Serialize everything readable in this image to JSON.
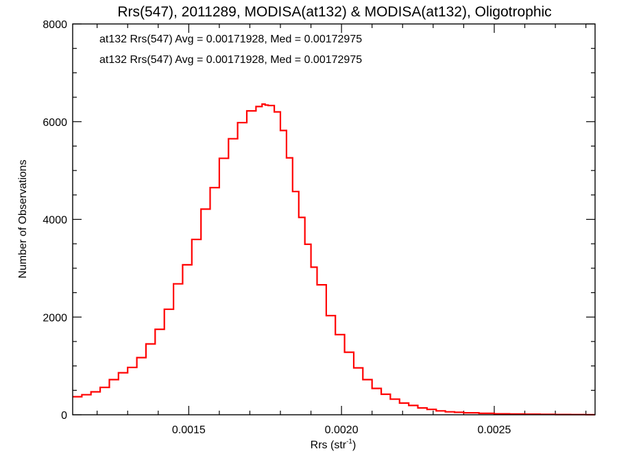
{
  "chart_data": {
    "type": "step",
    "title": "Rrs(547), 2011289, MODISA(at132) & MODISA(at132), Oligotrophic",
    "xlabel": "Rrs (str",
    "xlabel_sup": "-1",
    "xlabel_close": ")",
    "ylabel": "Number of Observations",
    "xlim": [
      0.00112,
      0.00283
    ],
    "ylim": [
      0,
      8000
    ],
    "xticks": [
      0.0015,
      0.002,
      0.0025
    ],
    "xtick_labels": [
      "0.0015",
      "0.0020",
      "0.0025"
    ],
    "yticks": [
      0,
      2000,
      4000,
      6000,
      8000
    ],
    "ytick_labels": [
      "0",
      "2000",
      "4000",
      "6000",
      "8000"
    ],
    "grid": false,
    "annotations": [
      {
        "text": "at132 Rrs(547) Avg = 0.00171928, Med = 0.00172975",
        "color": "#000000"
      },
      {
        "text": "at132 Rrs(547) Avg = 0.00171928, Med = 0.00172975",
        "color": "#ff0000"
      }
    ],
    "series": [
      {
        "color": "#ff0000",
        "x": [
          0.00112,
          0.00115,
          0.00118,
          0.00121,
          0.00124,
          0.00127,
          0.0013,
          0.00133,
          0.00136,
          0.00139,
          0.00142,
          0.00145,
          0.00148,
          0.00151,
          0.00154,
          0.00157,
          0.0016,
          0.00163,
          0.00166,
          0.00169,
          0.00172,
          0.00174,
          0.00175,
          0.00176,
          0.00178,
          0.0018,
          0.00182,
          0.00184,
          0.00186,
          0.00188,
          0.0019,
          0.00192,
          0.00195,
          0.00198,
          0.00201,
          0.00204,
          0.00207,
          0.0021,
          0.00213,
          0.00216,
          0.00219,
          0.00222,
          0.00225,
          0.00228,
          0.00231,
          0.00234,
          0.00237,
          0.0024,
          0.00245,
          0.0025,
          0.00255,
          0.0026,
          0.00265,
          0.0027,
          0.00275,
          0.0028,
          0.00283
        ],
        "y": [
          370,
          410,
          470,
          560,
          720,
          860,
          970,
          1170,
          1450,
          1750,
          2160,
          2680,
          3070,
          3590,
          4210,
          4650,
          5250,
          5650,
          5980,
          6220,
          6310,
          6360,
          6340,
          6330,
          6200,
          5820,
          5260,
          4570,
          4040,
          3490,
          3020,
          2660,
          2030,
          1640,
          1280,
          960,
          720,
          540,
          420,
          320,
          240,
          190,
          140,
          110,
          80,
          60,
          50,
          40,
          30,
          20,
          15,
          12,
          8,
          6,
          4,
          2,
          2
        ]
      }
    ]
  }
}
